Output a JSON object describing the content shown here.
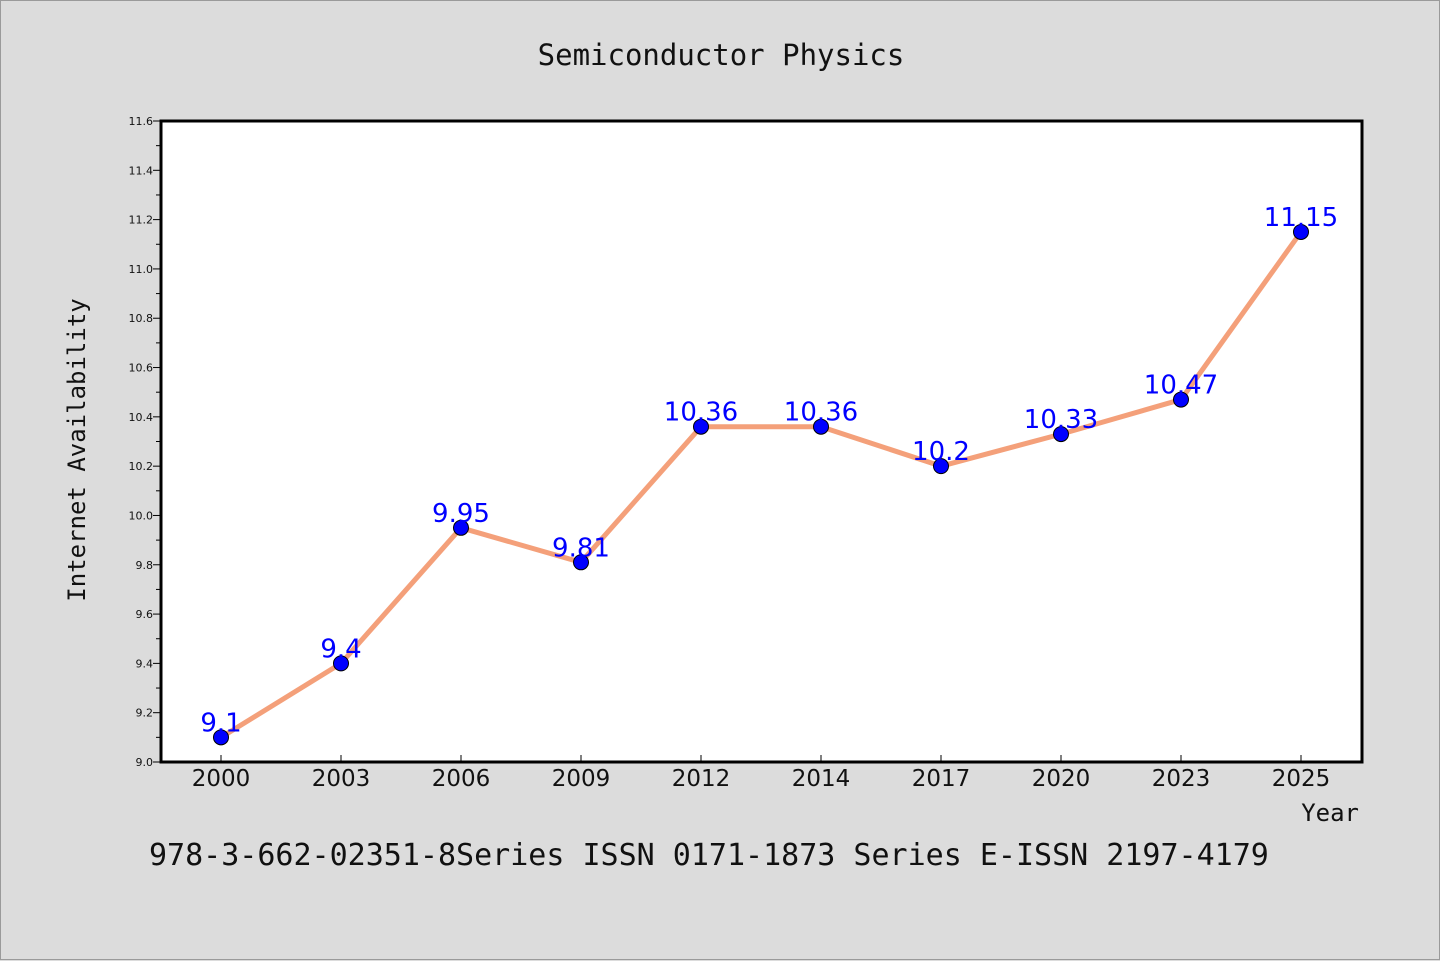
{
  "chart_data": {
    "type": "line",
    "title": "Semiconductor Physics",
    "xlabel": "Year",
    "ylabel": "Internet Availability",
    "categories": [
      "2000",
      "2003",
      "2006",
      "2009",
      "2012",
      "2014",
      "2017",
      "2020",
      "2023",
      "2025"
    ],
    "series": [
      {
        "values": [
          9.1,
          9.4,
          9.95,
          9.81,
          10.36,
          10.36,
          10.2,
          10.33,
          10.47,
          11.15
        ],
        "labels": [
          "9.1",
          "9.4",
          "9.95",
          "9.81",
          "10.36",
          "10.36",
          "10.2",
          "10.33",
          "10.47",
          "11.15"
        ],
        "line_color": "#f4a07a",
        "marker_color": "#0000ff"
      }
    ],
    "ylim": [
      9.0,
      11.6
    ],
    "yticks": [
      "9.0",
      "9.2",
      "9.4",
      "9.6",
      "9.8",
      "10.0",
      "10.2",
      "10.4",
      "10.6",
      "10.8",
      "11.0",
      "11.2",
      "11.4",
      "11.6"
    ],
    "grid": false,
    "legend": "none"
  },
  "footer": {
    "text": "978-3-662-02351-8Series ISSN 0171-1873 Series E-ISSN 2197-4179"
  },
  "colors": {
    "background": "#dcdcdc",
    "plot_background": "#ffffff",
    "line": "#f4a07a",
    "marker": "#0000ff",
    "data_label": "#0000ff"
  }
}
